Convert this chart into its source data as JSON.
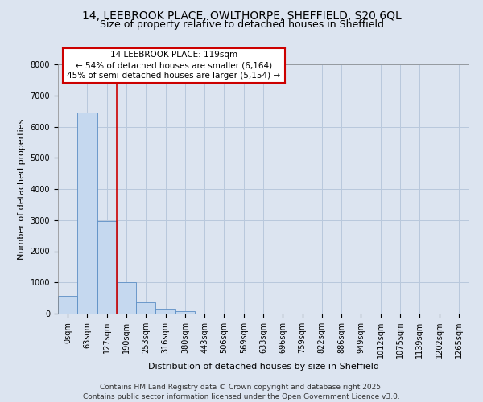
{
  "title_line1": "14, LEEBROOK PLACE, OWLTHORPE, SHEFFIELD, S20 6QL",
  "title_line2": "Size of property relative to detached houses in Sheffield",
  "xlabel": "Distribution of detached houses by size in Sheffield",
  "ylabel": "Number of detached properties",
  "categories": [
    "0sqm",
    "63sqm",
    "127sqm",
    "190sqm",
    "253sqm",
    "316sqm",
    "380sqm",
    "443sqm",
    "506sqm",
    "569sqm",
    "633sqm",
    "696sqm",
    "759sqm",
    "822sqm",
    "886sqm",
    "949sqm",
    "1012sqm",
    "1075sqm",
    "1139sqm",
    "1202sqm",
    "1265sqm"
  ],
  "values": [
    580,
    6450,
    2980,
    1000,
    360,
    150,
    90,
    0,
    0,
    0,
    0,
    0,
    0,
    0,
    0,
    0,
    0,
    0,
    0,
    0,
    0
  ],
  "bar_color": "#c5d8ef",
  "bar_edge_color": "#5b8ec4",
  "grid_color": "#b8c8dc",
  "background_color": "#dce4f0",
  "vline_x": 2.5,
  "vline_color": "#cc0000",
  "annotation_box_text": "14 LEEBROOK PLACE: 119sqm\n← 54% of detached houses are smaller (6,164)\n45% of semi-detached houses are larger (5,154) →",
  "ylim": [
    0,
    8000
  ],
  "yticks": [
    0,
    1000,
    2000,
    3000,
    4000,
    5000,
    6000,
    7000,
    8000
  ],
  "footnote_line1": "Contains HM Land Registry data © Crown copyright and database right 2025.",
  "footnote_line2": "Contains public sector information licensed under the Open Government Licence v3.0.",
  "title_fontsize": 10,
  "subtitle_fontsize": 9,
  "axis_label_fontsize": 8,
  "tick_fontsize": 7,
  "annotation_fontsize": 7.5,
  "footnote_fontsize": 6.5
}
